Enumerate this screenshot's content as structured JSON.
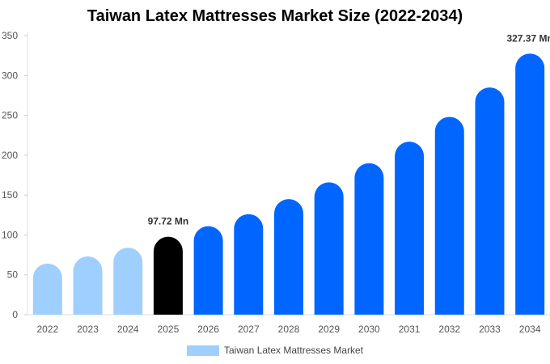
{
  "chart_data": {
    "type": "bar",
    "title": "Taiwan Latex Mattresses Market Size (2022-2034)",
    "categories": [
      "2022",
      "2023",
      "2024",
      "2025",
      "2026",
      "2027",
      "2028",
      "2029",
      "2030",
      "2031",
      "2032",
      "2033",
      "2034"
    ],
    "series": [
      {
        "name": "Taiwan Latex Mattresses Market",
        "values": [
          64,
          73,
          84,
          97.72,
          111,
          126,
          145,
          166,
          190,
          217,
          248,
          285,
          327.37
        ]
      }
    ],
    "data_labels": [
      {
        "index": 3,
        "text": "97.72 Mn"
      },
      {
        "index": 12,
        "text": "327.37 Mn"
      }
    ],
    "ylim": [
      0,
      350
    ],
    "yticks": [
      0,
      50,
      100,
      150,
      200,
      250,
      300,
      350
    ],
    "xlabel": "",
    "ylabel": "",
    "grid": false,
    "legend_position": "bottom",
    "colors": {
      "historic": "#9fcfff",
      "current": "#000000",
      "forecast": "#0066ff",
      "legend_swatch": "#9fcfff"
    }
  }
}
